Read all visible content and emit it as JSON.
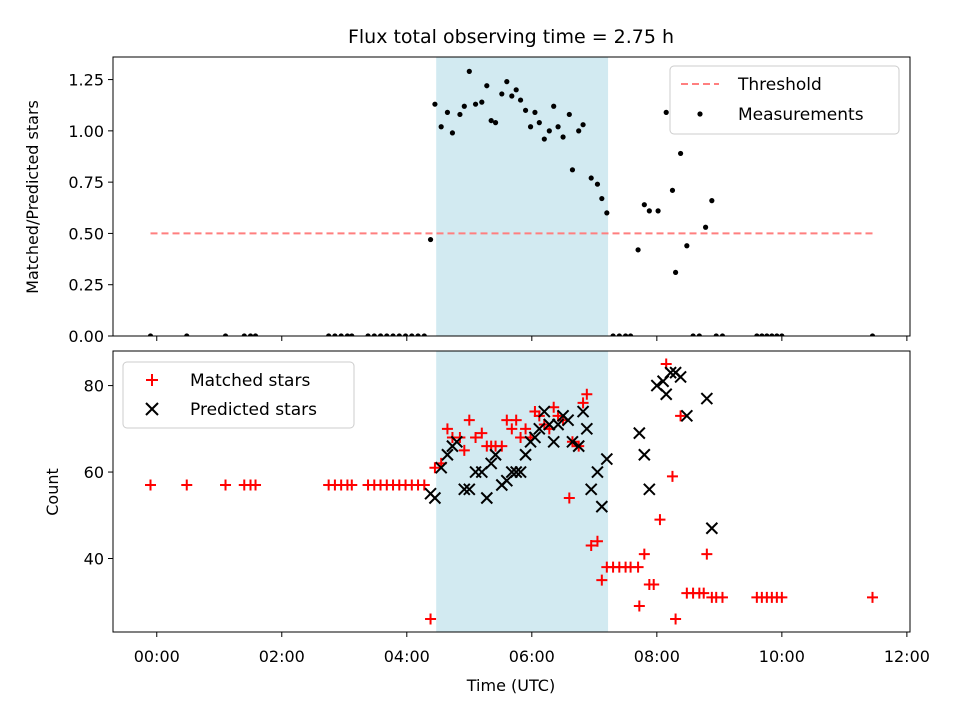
{
  "title": "Flux total observing time = 2.75 h",
  "x_ticks": [
    "00:00",
    "02:00",
    "04:00",
    "06:00",
    "08:00",
    "10:00",
    "12:00"
  ],
  "xlabel": "Time (UTC)",
  "colors": {
    "threshold": "#ff7f7f",
    "measurements": "#000000",
    "matched": "#ff0000",
    "predicted": "#000000",
    "window": "#add8e6"
  },
  "chart_data": [
    {
      "type": "scatter",
      "ylabel": "Matched/Predicted stars",
      "x_unit": "hours UTC",
      "xlim": [
        -0.7,
        12.05
      ],
      "ylim": [
        0,
        1.36
      ],
      "y_ticks": [
        "0.00",
        "0.25",
        "0.50",
        "0.75",
        "1.00",
        "1.25"
      ],
      "highlight_window_hours": [
        4.47,
        7.22
      ],
      "legend_position": "upper right",
      "legend": [
        "Threshold",
        "Measurements"
      ],
      "threshold": {
        "name": "Threshold",
        "x": [
          -0.1,
          11.5
        ],
        "y": 0.5,
        "style": "dashed"
      },
      "series": [
        {
          "name": "Measurements",
          "marker": "dot",
          "points": [
            [
              -0.1,
              0
            ],
            [
              0.48,
              0
            ],
            [
              1.1,
              0
            ],
            [
              1.4,
              0
            ],
            [
              1.5,
              0
            ],
            [
              1.58,
              0
            ],
            [
              2.75,
              0
            ],
            [
              2.85,
              0
            ],
            [
              2.95,
              0
            ],
            [
              3.05,
              0
            ],
            [
              3.12,
              0
            ],
            [
              3.38,
              0
            ],
            [
              3.48,
              0
            ],
            [
              3.58,
              0
            ],
            [
              3.68,
              0
            ],
            [
              3.78,
              0
            ],
            [
              3.88,
              0
            ],
            [
              3.98,
              0
            ],
            [
              4.08,
              0
            ],
            [
              4.18,
              0
            ],
            [
              4.28,
              0
            ],
            [
              4.38,
              0.47
            ],
            [
              4.45,
              1.13
            ],
            [
              4.55,
              1.02
            ],
            [
              4.65,
              1.09
            ],
            [
              4.73,
              0.99
            ],
            [
              4.85,
              1.08
            ],
            [
              4.92,
              1.12
            ],
            [
              5.0,
              1.29
            ],
            [
              5.1,
              1.13
            ],
            [
              5.2,
              1.14
            ],
            [
              5.28,
              1.22
            ],
            [
              5.35,
              1.05
            ],
            [
              5.42,
              1.04
            ],
            [
              5.52,
              1.18
            ],
            [
              5.6,
              1.24
            ],
            [
              5.68,
              1.17
            ],
            [
              5.75,
              1.2
            ],
            [
              5.82,
              1.15
            ],
            [
              5.9,
              1.1
            ],
            [
              5.98,
              1.02
            ],
            [
              6.05,
              1.09
            ],
            [
              6.12,
              1.04
            ],
            [
              6.2,
              0.96
            ],
            [
              6.28,
              1.0
            ],
            [
              6.35,
              1.12
            ],
            [
              6.42,
              1.02
            ],
            [
              6.5,
              0.97
            ],
            [
              6.6,
              1.08
            ],
            [
              6.65,
              0.81
            ],
            [
              6.75,
              1.0
            ],
            [
              6.82,
              1.03
            ],
            [
              6.95,
              0.77
            ],
            [
              7.05,
              0.74
            ],
            [
              7.12,
              0.67
            ],
            [
              7.2,
              0.6
            ],
            [
              7.3,
              0
            ],
            [
              7.4,
              0
            ],
            [
              7.5,
              0
            ],
            [
              7.58,
              0
            ],
            [
              7.7,
              0.42
            ],
            [
              7.8,
              0.64
            ],
            [
              7.88,
              0.61
            ],
            [
              8.02,
              0.61
            ],
            [
              8.15,
              1.09
            ],
            [
              8.25,
              0.71
            ],
            [
              8.3,
              0.31
            ],
            [
              8.38,
              0.89
            ],
            [
              8.48,
              0.44
            ],
            [
              8.58,
              0
            ],
            [
              8.68,
              0
            ],
            [
              8.78,
              0.53
            ],
            [
              8.88,
              0.66
            ],
            [
              8.95,
              0
            ],
            [
              9.05,
              0
            ],
            [
              9.6,
              0
            ],
            [
              9.68,
              0
            ],
            [
              9.76,
              0
            ],
            [
              9.84,
              0
            ],
            [
              9.92,
              0
            ],
            [
              10.0,
              0
            ],
            [
              11.45,
              0
            ]
          ]
        }
      ]
    },
    {
      "type": "scatter",
      "ylabel": "Count",
      "x_unit": "hours UTC",
      "xlim": [
        -0.7,
        12.05
      ],
      "ylim": [
        23,
        88
      ],
      "y_ticks": [
        "40",
        "60",
        "80"
      ],
      "highlight_window_hours": [
        4.47,
        7.22
      ],
      "legend_position": "upper left",
      "legend": [
        "Matched stars",
        "Predicted stars"
      ],
      "series": [
        {
          "name": "Matched stars",
          "marker": "plus",
          "points": [
            [
              -0.1,
              57
            ],
            [
              0.48,
              57
            ],
            [
              1.1,
              57
            ],
            [
              1.4,
              57
            ],
            [
              1.5,
              57
            ],
            [
              1.58,
              57
            ],
            [
              2.75,
              57
            ],
            [
              2.85,
              57
            ],
            [
              2.95,
              57
            ],
            [
              3.05,
              57
            ],
            [
              3.12,
              57
            ],
            [
              3.38,
              57
            ],
            [
              3.48,
              57
            ],
            [
              3.58,
              57
            ],
            [
              3.68,
              57
            ],
            [
              3.78,
              57
            ],
            [
              3.88,
              57
            ],
            [
              3.98,
              57
            ],
            [
              4.08,
              57
            ],
            [
              4.18,
              57
            ],
            [
              4.28,
              57
            ],
            [
              4.38,
              26
            ],
            [
              4.45,
              61
            ],
            [
              4.55,
              62
            ],
            [
              4.65,
              70
            ],
            [
              4.73,
              68
            ],
            [
              4.85,
              68
            ],
            [
              4.92,
              65
            ],
            [
              5.0,
              72
            ],
            [
              5.1,
              68
            ],
            [
              5.2,
              69
            ],
            [
              5.28,
              66
            ],
            [
              5.35,
              66
            ],
            [
              5.42,
              66
            ],
            [
              5.52,
              66
            ],
            [
              5.6,
              72
            ],
            [
              5.68,
              70
            ],
            [
              5.75,
              72
            ],
            [
              5.82,
              68
            ],
            [
              5.9,
              70
            ],
            [
              5.98,
              68
            ],
            [
              6.05,
              74
            ],
            [
              6.12,
              73
            ],
            [
              6.2,
              71
            ],
            [
              6.28,
              70
            ],
            [
              6.35,
              75
            ],
            [
              6.42,
              73
            ],
            [
              6.5,
              72
            ],
            [
              6.6,
              54
            ],
            [
              6.65,
              67
            ],
            [
              6.75,
              66
            ],
            [
              6.82,
              76
            ],
            [
              6.88,
              78
            ],
            [
              6.95,
              43
            ],
            [
              7.05,
              44
            ],
            [
              7.12,
              35
            ],
            [
              7.2,
              38
            ],
            [
              7.3,
              38
            ],
            [
              7.4,
              38
            ],
            [
              7.5,
              38
            ],
            [
              7.58,
              38
            ],
            [
              7.7,
              38
            ],
            [
              7.72,
              29
            ],
            [
              7.8,
              41
            ],
            [
              7.88,
              34
            ],
            [
              7.95,
              34
            ],
            [
              8.05,
              49
            ],
            [
              8.15,
              85
            ],
            [
              8.25,
              59
            ],
            [
              8.3,
              26
            ],
            [
              8.38,
              73
            ],
            [
              8.48,
              32
            ],
            [
              8.58,
              32
            ],
            [
              8.68,
              32
            ],
            [
              8.75,
              32
            ],
            [
              8.8,
              41
            ],
            [
              8.88,
              31
            ],
            [
              8.95,
              31
            ],
            [
              9.05,
              31
            ],
            [
              9.6,
              31
            ],
            [
              9.68,
              31
            ],
            [
              9.76,
              31
            ],
            [
              9.84,
              31
            ],
            [
              9.92,
              31
            ],
            [
              10.0,
              31
            ],
            [
              11.45,
              31
            ]
          ]
        },
        {
          "name": "Predicted stars",
          "marker": "x",
          "points": [
            [
              4.38,
              55
            ],
            [
              4.45,
              54
            ],
            [
              4.55,
              61
            ],
            [
              4.65,
              64
            ],
            [
              4.73,
              66
            ],
            [
              4.8,
              67
            ],
            [
              4.92,
              56
            ],
            [
              5.0,
              56
            ],
            [
              5.1,
              60
            ],
            [
              5.2,
              60
            ],
            [
              5.28,
              54
            ],
            [
              5.35,
              62
            ],
            [
              5.42,
              64
            ],
            [
              5.52,
              57
            ],
            [
              5.6,
              58
            ],
            [
              5.68,
              60
            ],
            [
              5.75,
              60
            ],
            [
              5.82,
              60
            ],
            [
              5.9,
              64
            ],
            [
              5.98,
              67
            ],
            [
              6.05,
              68
            ],
            [
              6.12,
              70
            ],
            [
              6.2,
              74
            ],
            [
              6.28,
              71
            ],
            [
              6.35,
              67
            ],
            [
              6.42,
              71
            ],
            [
              6.5,
              73
            ],
            [
              6.58,
              72
            ],
            [
              6.65,
              67
            ],
            [
              6.75,
              66
            ],
            [
              6.82,
              74
            ],
            [
              6.88,
              70
            ],
            [
              6.95,
              56
            ],
            [
              7.05,
              60
            ],
            [
              7.12,
              52
            ],
            [
              7.2,
              63
            ],
            [
              7.72,
              69
            ],
            [
              7.8,
              64
            ],
            [
              7.88,
              56
            ],
            [
              8.0,
              80
            ],
            [
              8.1,
              81
            ],
            [
              8.15,
              78
            ],
            [
              8.22,
              83
            ],
            [
              8.3,
              83
            ],
            [
              8.38,
              82
            ],
            [
              8.48,
              73
            ],
            [
              8.8,
              77
            ],
            [
              8.88,
              47
            ]
          ]
        }
      ]
    }
  ]
}
